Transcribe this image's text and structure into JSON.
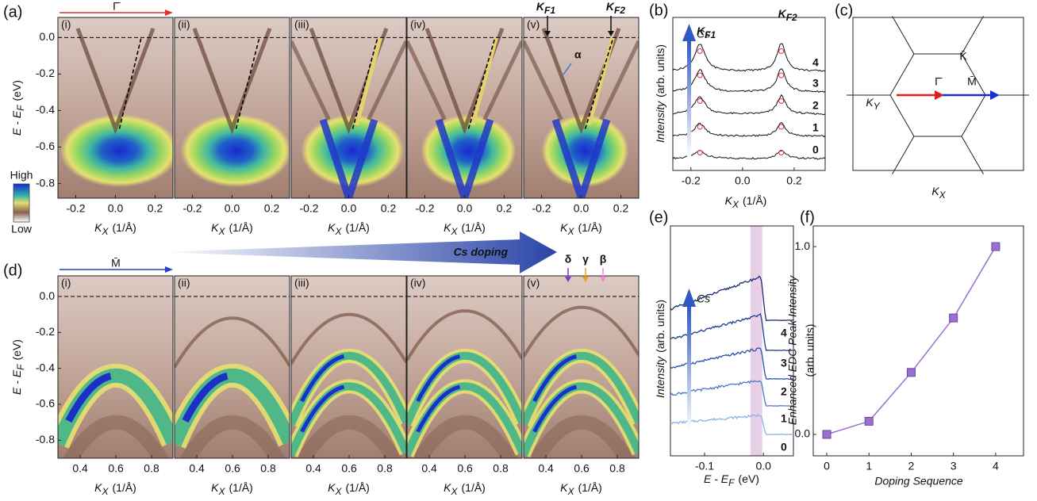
{
  "figure": {
    "panel_a": {
      "label": "(a)",
      "direction": "Γ̄",
      "subpanels": [
        "(i)",
        "(ii)",
        "(iii)",
        "(iv)",
        "(v)"
      ],
      "xlim": [
        -0.29,
        0.29
      ],
      "xticks": [
        -0.2,
        {
          "value": 0,
          "label": "0.0"
        },
        0.2
      ],
      "ylim": [
        -0.88,
        0.11
      ],
      "yticks": [
        {
          "value": 0,
          "label": "0.0"
        },
        -0.2,
        -0.4,
        -0.6,
        -0.8
      ],
      "xlabel": {
        "symbol": "K",
        "subscript": "X",
        "unit": "(1/Å)"
      },
      "ylabel": {
        "symbol": "E - E",
        "subscript": "F",
        "unit": "(eV)"
      },
      "kf_labels": [
        {
          "symbol": "K",
          "subscript": "F1"
        },
        {
          "symbol": "K",
          "subscript": "F2"
        }
      ],
      "band_label": "α",
      "colorbar": {
        "high": "High",
        "low": "Low"
      }
    },
    "doping_arrow": "Cs doping",
    "panel_d": {
      "label": "(d)",
      "direction": "M̄",
      "subpanels": [
        "(i)",
        "(ii)",
        "(iii)",
        "(iv)",
        "(v)"
      ],
      "xlim": [
        0.275,
        0.92
      ],
      "xticks": [
        0.4,
        0.6,
        0.8
      ],
      "ylim": [
        -0.9,
        0.115
      ],
      "yticks": [
        {
          "value": 0,
          "label": "0.0"
        },
        -0.2,
        -0.4,
        -0.6,
        -0.8
      ],
      "xlabel": {
        "symbol": "K",
        "subscript": "X",
        "unit": "(1/Å)"
      },
      "ylabel": {
        "symbol": "E - E",
        "subscript": "F",
        "unit": "(eV)"
      },
      "band_labels": [
        "δ",
        "γ",
        "β"
      ]
    },
    "panel_b": {
      "label": "(b)",
      "xlim": [
        -0.27,
        0.32
      ],
      "xticks": [
        -0.2,
        {
          "value": 0,
          "label": "0.0"
        },
        0.2
      ],
      "xlabel": {
        "symbol": "K",
        "subscript": "X",
        "unit": "(1/Å)"
      },
      "ylabel": {
        "symbol": "Intensity",
        "unit": "(arb. units)"
      },
      "kf_labels": [
        {
          "symbol": "K",
          "subscript": "F1"
        },
        {
          "symbol": "K",
          "subscript": "F2"
        }
      ],
      "dopant": "Cs",
      "curve_labels": [
        "0",
        "1",
        "2",
        "3",
        "4"
      ]
    },
    "panel_c": {
      "label": "(c)",
      "points": [
        "K̄",
        "Γ̄",
        "M̄"
      ],
      "ylabel": {
        "symbol": "K",
        "subscript": "Y"
      },
      "xlabel": {
        "symbol": "K",
        "subscript": "X"
      }
    },
    "panel_e": {
      "label": "(e)",
      "xlim": [
        -0.158,
        0.051
      ],
      "xticks": [
        -0.1,
        {
          "value": 0,
          "label": "0.0"
        }
      ],
      "xlabel": {
        "symbol": "E - E",
        "subscript": "F",
        "unit": "(eV)"
      },
      "ylabel": {
        "symbol": "Intensity",
        "unit": "(arb. units)"
      },
      "dopant": "Cs",
      "curve_labels": [
        "0",
        "1",
        "2",
        "3",
        "4"
      ]
    }
  },
  "chart_data": {
    "type": "line",
    "label": "(f)",
    "x": [
      0,
      1,
      2,
      3,
      4
    ],
    "values": [
      0.0,
      0.07,
      0.33,
      0.62,
      1.0
    ],
    "color": "#9a6fd0",
    "xlim": [
      -0.32,
      4.66
    ],
    "xticks": [
      0,
      1,
      2,
      3,
      4
    ],
    "ylim": [
      -0.114,
      1.11
    ],
    "yticks": [
      {
        "value": 0,
        "label": "0.0"
      },
      {
        "value": 1,
        "label": "1.0"
      }
    ],
    "ylabel": [
      "Enhanced EDC Peak Intensity",
      "(arb. units)"
    ],
    "xlabel": "Doping Sequence"
  }
}
